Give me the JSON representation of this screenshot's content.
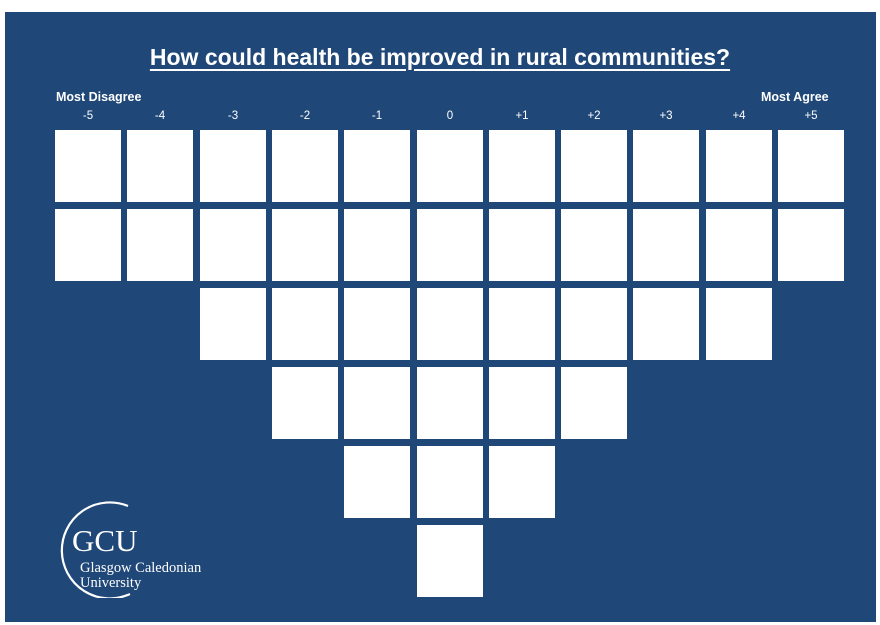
{
  "title": "How could health be improved in rural communities?",
  "labels": {
    "left": "Most Disagree",
    "right": "Most Agree"
  },
  "scale": [
    "-5",
    "-4",
    "-3",
    "-2",
    "-1",
    "0",
    "+1",
    "+2",
    "+3",
    "+4",
    "+5"
  ],
  "column_cells": [
    2,
    2,
    3,
    4,
    5,
    6,
    5,
    4,
    3,
    3,
    2
  ],
  "colors": {
    "background": "#1f4778",
    "cell": "#ffffff",
    "text": "#ffffff"
  },
  "logo": {
    "mark": "GCU",
    "name_line1": "Glasgow Caledonian",
    "name_line2": "University"
  }
}
